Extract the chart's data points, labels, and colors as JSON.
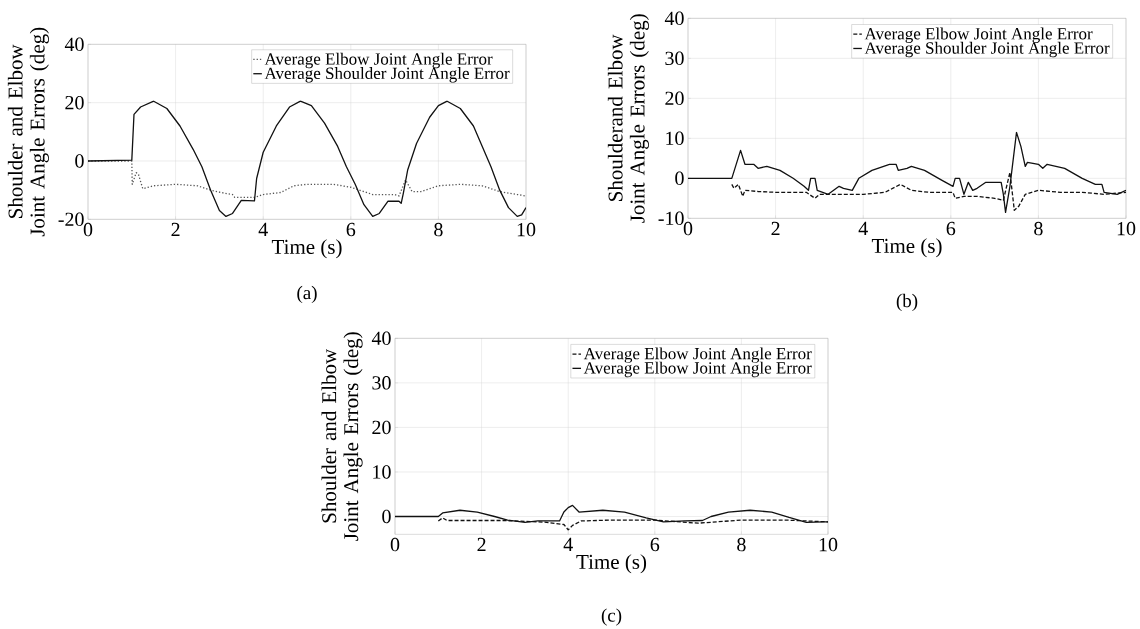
{
  "chart_data": [
    {
      "type": "line",
      "xlabel": "Time (s)",
      "ylabel": "Shoulder and Elbow Joint Angle Errors (deg)",
      "annotations": [
        "(a)"
      ],
      "xlim": [
        0,
        10
      ],
      "ylim": [
        -20,
        40
      ],
      "xticks": [
        0,
        2,
        4,
        6,
        8,
        10
      ],
      "yticks": [
        -20,
        0,
        20,
        40
      ],
      "grid": true,
      "legend": "top right",
      "series": [
        {
          "name": "Average Elbow Joint Angle Error",
          "color": "#555555",
          "line_style": "dotted",
          "x": [
            0,
            1.0,
            1.01,
            1.1,
            1.15,
            1.25,
            1.5,
            2.0,
            2.5,
            2.8,
            3.1,
            3.3,
            3.35,
            3.8,
            4.0,
            4.4,
            4.7,
            5.0,
            5.6,
            6.0,
            6.5,
            7.0,
            7.1,
            7.25,
            7.4,
            7.6,
            8.0,
            8.5,
            9.0,
            9.4,
            9.8,
            10
          ],
          "values": [
            0,
            0,
            -8,
            -4,
            -4.5,
            -9.5,
            -8.5,
            -8,
            -8.5,
            -10,
            -11,
            -11.5,
            -12.5,
            -12.5,
            -11.5,
            -10.8,
            -8.5,
            -8,
            -8,
            -9,
            -11.5,
            -11.5,
            -12,
            -6.5,
            -10.5,
            -10.5,
            -8.5,
            -8,
            -8.5,
            -10.5,
            -11.5,
            -12
          ]
        },
        {
          "name": "Average Shoulder Joint Angle Error",
          "color": "#111111",
          "line_style": "solid",
          "x": [
            0,
            1.0,
            1.05,
            1.2,
            1.5,
            1.8,
            2.1,
            2.4,
            2.6,
            2.8,
            3.0,
            3.15,
            3.3,
            3.5,
            3.8,
            3.85,
            4.0,
            4.3,
            4.6,
            4.85,
            5.1,
            5.4,
            5.7,
            5.9,
            6.1,
            6.3,
            6.5,
            6.65,
            6.85,
            7.1,
            7.15,
            7.2,
            7.3,
            7.5,
            7.8,
            8.0,
            8.2,
            8.5,
            8.8,
            9.0,
            9.2,
            9.4,
            9.6,
            9.8,
            9.9,
            10
          ],
          "values": [
            0,
            0.3,
            16,
            18.5,
            20.5,
            18,
            12,
            4,
            -2,
            -10,
            -17,
            -19,
            -18,
            -13.5,
            -13.7,
            -6,
            3,
            12,
            18.5,
            20.5,
            19,
            13,
            5,
            -2,
            -8,
            -15,
            -19,
            -18,
            -13.8,
            -13.8,
            -14.5,
            -11,
            -3,
            6,
            15,
            19,
            20.5,
            18,
            12,
            5,
            -2,
            -10,
            -16,
            -19,
            -18.5,
            -16
          ]
        }
      ]
    },
    {
      "type": "line",
      "xlabel": "Time (s)",
      "ylabel": "Shoulderand Elbow Joint Angle Errors (deg)",
      "annotations": [
        "(b)"
      ],
      "xlim": [
        0,
        10
      ],
      "ylim": [
        -10,
        40
      ],
      "xticks": [
        0,
        2,
        4,
        6,
        8,
        10
      ],
      "yticks": [
        -10,
        0,
        10,
        20,
        30,
        40
      ],
      "grid": true,
      "legend": "top right",
      "series": [
        {
          "name": "Average Elbow Joint Angle Error",
          "color": "#111111",
          "line_style": "dashed",
          "x": [
            1.0,
            1.05,
            1.15,
            1.25,
            1.3,
            1.6,
            2.0,
            2.7,
            2.9,
            3.0,
            3.5,
            4.0,
            4.5,
            4.85,
            5.1,
            5.5,
            6.05,
            6.1,
            6.3,
            6.6,
            7.0,
            7.2,
            7.35,
            7.45,
            7.55,
            7.7,
            8.0,
            8.5,
            9.0,
            9.5,
            10
          ],
          "values": [
            -1.5,
            -2.5,
            -1.5,
            -4.5,
            -3,
            -3.3,
            -3.5,
            -3.5,
            -5,
            -4,
            -4,
            -4,
            -3.5,
            -1.5,
            -3,
            -3.5,
            -3.5,
            -5,
            -4.5,
            -4.5,
            -5,
            -5.5,
            1.5,
            -8,
            -7,
            -4,
            -3,
            -3.5,
            -3.5,
            -4,
            -3.5
          ]
        },
        {
          "name": "Average Shoulder Joint Angle Error",
          "color": "#111111",
          "line_style": "solid",
          "x": [
            0,
            1.0,
            1.2,
            1.3,
            1.5,
            1.6,
            1.8,
            2.1,
            2.4,
            2.65,
            2.75,
            2.8,
            2.9,
            2.95,
            3.2,
            3.45,
            3.55,
            3.75,
            3.9,
            4.2,
            4.6,
            4.75,
            4.8,
            5.0,
            5.1,
            5.4,
            5.8,
            6.05,
            6.1,
            6.2,
            6.3,
            6.4,
            6.5,
            6.6,
            6.8,
            7.15,
            7.2,
            7.25,
            7.35,
            7.5,
            7.6,
            7.7,
            7.75,
            8.0,
            8.1,
            8.2,
            8.6,
            9.0,
            9.3,
            9.45,
            9.5,
            9.8,
            10
          ],
          "values": [
            0,
            0,
            7,
            3.5,
            3.5,
            2.5,
            3,
            2,
            0,
            -2,
            -3,
            0,
            0,
            -3,
            -4,
            -2,
            -2.5,
            -3,
            0,
            2,
            3.5,
            3.5,
            2,
            2.5,
            3,
            2,
            -0.5,
            -2,
            0,
            0,
            -4,
            -1,
            -3,
            -2.5,
            -1,
            -1,
            -4,
            -8.5,
            -2,
            11.5,
            8,
            3,
            4,
            3.5,
            2.5,
            3.5,
            2.5,
            0,
            -1.5,
            -1.5,
            -3.5,
            -4,
            -3
          ]
        }
      ]
    },
    {
      "type": "line",
      "xlabel": "Time (s)",
      "ylabel": "Shoulder and Elbow Joint Angle Errors (deg)",
      "annotations": [
        "(c)"
      ],
      "xlim": [
        0,
        10
      ],
      "ylim": [
        -4,
        40
      ],
      "xticks": [
        0,
        2,
        4,
        6,
        8,
        10
      ],
      "yticks": [
        0,
        10,
        20,
        30,
        40
      ],
      "grid": true,
      "legend": "top right",
      "series": [
        {
          "name": "Average Elbow Joint Angle Error",
          "color": "#111111",
          "line_style": "dashed",
          "x": [
            1.0,
            1.1,
            1.2,
            2.5,
            3.5,
            3.9,
            4.0,
            4.1,
            4.3,
            5,
            6,
            7.0,
            8,
            9,
            10
          ],
          "values": [
            -1,
            -0.3,
            -0.9,
            -0.9,
            -1.3,
            -1.8,
            -3,
            -2,
            -1,
            -0.8,
            -0.8,
            -1.5,
            -0.8,
            -0.8,
            -1.2
          ]
        },
        {
          "name": "Average Elbow Joint Angle Error",
          "color": "#111111",
          "line_style": "solid",
          "x": [
            0,
            1,
            1.1,
            1.5,
            1.9,
            2.3,
            2.6,
            3.0,
            3.3,
            3.8,
            3.9,
            4.0,
            4.1,
            4.25,
            4.8,
            5.3,
            5.8,
            6.2,
            6.7,
            7.1,
            7.3,
            7.7,
            8.2,
            8.7,
            9.1,
            9.5,
            9.9,
            10
          ],
          "values": [
            0,
            0,
            0.8,
            1.4,
            1.0,
            0,
            -0.8,
            -1.3,
            -1.0,
            -1.0,
            1,
            2,
            2.5,
            1,
            1.4,
            1,
            -0.3,
            -1.2,
            -1,
            -0.9,
            0,
            1,
            1.4,
            1,
            -0.2,
            -1.3,
            -1.2,
            -1.2
          ]
        }
      ]
    }
  ]
}
